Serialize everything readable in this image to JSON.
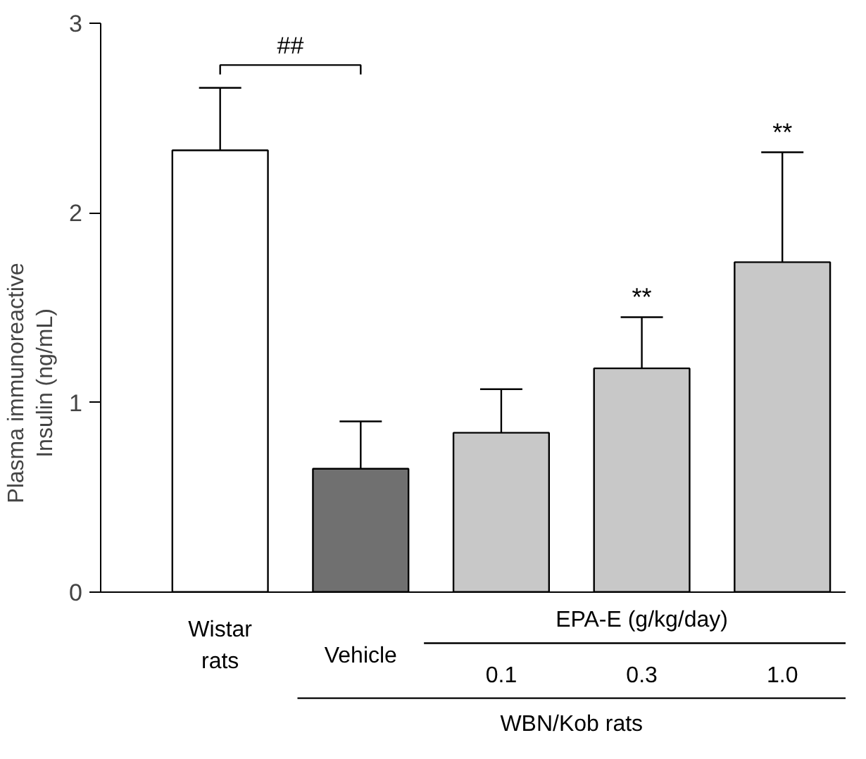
{
  "chart_data": {
    "type": "bar",
    "ylabel": "Plasma immunoreactive\nInsulin (ng/mL)",
    "categories": [
      "Wistar rats",
      "Vehicle",
      "0.1",
      "0.3",
      "1.0"
    ],
    "values": [
      2.33,
      0.65,
      0.84,
      1.18,
      1.74
    ],
    "errors": [
      [
        2.33,
        2.66
      ],
      [
        0.65,
        0.9
      ],
      [
        0.84,
        1.07
      ],
      [
        1.18,
        1.45
      ],
      [
        1.74,
        2.32
      ]
    ],
    "colors": [
      "#ffffff",
      "#707070",
      "#c8c8c8",
      "#c8c8c8",
      "#c8c8c8"
    ],
    "ylim": [
      0,
      3
    ],
    "yticks": [
      0,
      1,
      2,
      3
    ],
    "grid": false,
    "annotations": [
      "##",
      {
        "text": "**",
        "x": "0.3",
        "y": 1.45
      },
      {
        "text": "**",
        "x": "1.0",
        "y": 2.32
      },
      "EPA-E (g/kg/day)",
      "WBN/Kob rats"
    ]
  }
}
